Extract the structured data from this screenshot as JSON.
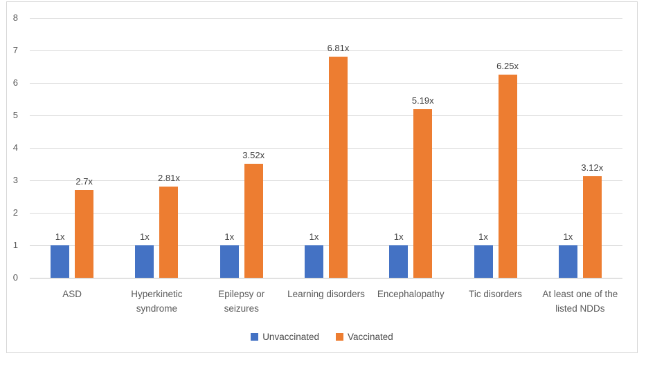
{
  "chart_data": {
    "type": "bar",
    "title": "",
    "xlabel": "",
    "ylabel": "",
    "categories": [
      "ASD",
      "Hyperkinetic syndrome",
      "Epilepsy or seizures",
      "Learning disorders",
      "Encephalopathy",
      "Tic disorders",
      "At least one of the listed NDDs"
    ],
    "series": [
      {
        "name": "Unvaccinated",
        "color": "#4472C4",
        "values": [
          1,
          1,
          1,
          1,
          1,
          1,
          1
        ],
        "labels": [
          "1x",
          "1x",
          "1x",
          "1x",
          "1x",
          "1x",
          "1x"
        ]
      },
      {
        "name": "Vaccinated",
        "color": "#ED7D31",
        "values": [
          2.7,
          2.81,
          3.52,
          6.81,
          5.19,
          6.25,
          3.12
        ],
        "labels": [
          "2.7x",
          "2.81x",
          "3.52x",
          "6.81x",
          "5.19x",
          "6.25x",
          "3.12x"
        ]
      }
    ],
    "ylim": [
      0,
      8
    ],
    "y_ticks": [
      0,
      1,
      2,
      3,
      4,
      5,
      6,
      7,
      8
    ],
    "grid": true,
    "legend_position": "bottom"
  },
  "style": {
    "gridline_color": "#D9D9D9",
    "axis_line_color": "#BFBFBF",
    "tick_text_color": "#595959",
    "data_label_color": "#3F3F3F",
    "frame_border_color": "#D6D6D6",
    "background_color": "#FFFFFF"
  }
}
